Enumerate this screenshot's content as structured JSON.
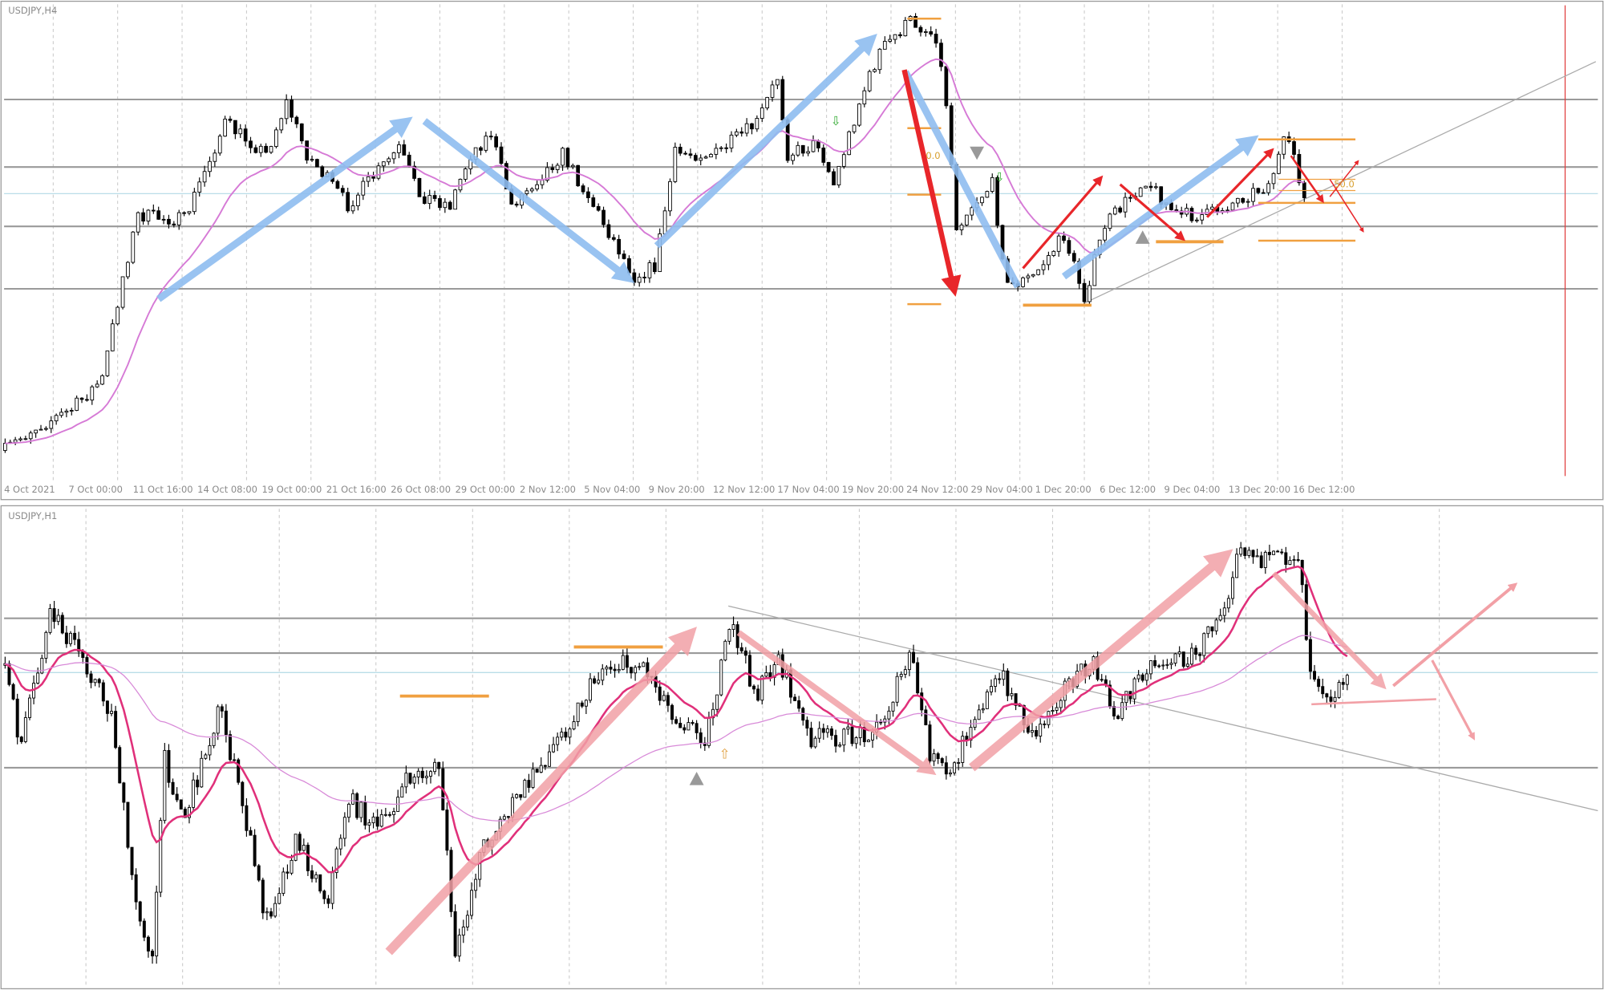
{
  "panels": [
    {
      "label": "USDJPY,H4",
      "dates": [
        "4 Oct 2021",
        "7 Oct 00:00",
        "11 Oct 16:00",
        "14 Oct 08:00",
        "19 Oct 00:00",
        "21 Oct 16:00",
        "26 Oct 08:00",
        "29 Oct 00:00",
        "2 Nov 12:00",
        "5 Nov 04:00",
        "9 Nov 20:00",
        "12 Nov 12:00",
        "17 Nov 04:00",
        "19 Nov 20:00",
        "24 Nov 12:00",
        "29 Nov 04:00",
        "1 Dec 20:00",
        "6 Dec 12:00",
        "9 Dec 04:00",
        "13 Dec 20:00",
        "16 Dec 12:00"
      ],
      "fib_labels": [
        "0.0",
        "50.0"
      ]
    },
    {
      "label": "USDJPY,H1"
    }
  ]
}
